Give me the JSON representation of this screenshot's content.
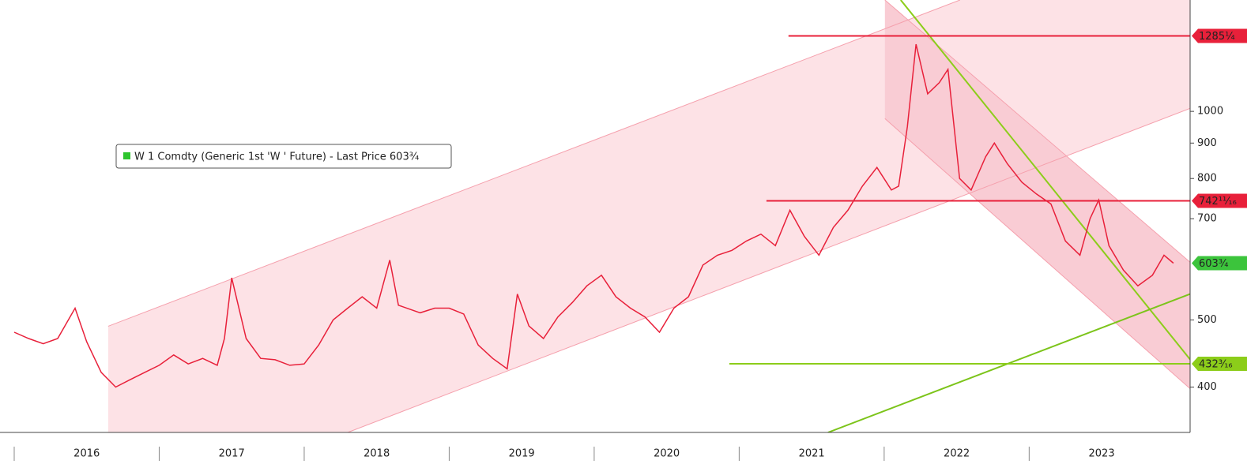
{
  "chart_data": {
    "type": "line",
    "log_scale": true,
    "xlim": [
      2015.902,
      2024.11
    ],
    "ylim": [
      344,
      1448
    ],
    "yticks": [
      400,
      500,
      700,
      800,
      900,
      1000
    ],
    "xticks": [
      {
        "value": 2016.5,
        "label": "2016"
      },
      {
        "value": 2017.5,
        "label": "2017"
      },
      {
        "value": 2018.5,
        "label": "2018"
      },
      {
        "value": 2019.5,
        "label": "2019"
      },
      {
        "value": 2020.5,
        "label": "2020"
      },
      {
        "value": 2021.5,
        "label": "2021"
      },
      {
        "value": 2022.5,
        "label": "2022"
      },
      {
        "value": 2023.5,
        "label": "2023"
      }
    ],
    "legend_color": "#2ec52e",
    "x": [
      2016.0,
      2016.1,
      2016.2,
      2016.3,
      2016.42,
      2016.5,
      2016.6,
      2016.7,
      2016.8,
      2016.9,
      2017.0,
      2017.1,
      2017.2,
      2017.3,
      2017.4,
      2017.45,
      2017.5,
      2017.6,
      2017.7,
      2017.8,
      2017.9,
      2018.0,
      2018.1,
      2018.2,
      2018.3,
      2018.4,
      2018.5,
      2018.59,
      2018.65,
      2018.8,
      2018.9,
      2019.0,
      2019.1,
      2019.2,
      2019.3,
      2019.4,
      2019.47,
      2019.55,
      2019.65,
      2019.75,
      2019.85,
      2019.95,
      2020.05,
      2020.15,
      2020.25,
      2020.35,
      2020.45,
      2020.55,
      2020.65,
      2020.75,
      2020.85,
      2020.95,
      2021.05,
      2021.15,
      2021.25,
      2021.35,
      2021.45,
      2021.55,
      2021.65,
      2021.75,
      2021.85,
      2021.95,
      2022.05,
      2022.1,
      2022.16,
      2022.22,
      2022.3,
      2022.38,
      2022.44,
      2022.52,
      2022.6,
      2022.7,
      2022.76,
      2022.85,
      2022.95,
      2023.05,
      2023.15,
      2023.25,
      2023.35,
      2023.42,
      2023.48,
      2023.55,
      2023.65,
      2023.75,
      2023.85,
      2023.93,
      2023.995
    ],
    "series": [
      {
        "name": "W 1 Comdty (Generic 1st 'W ' Future) - Last Price 603¾",
        "color": "#e8203a",
        "values": [
          480,
          470,
          462,
          470,
          520,
          465,
          420,
          400,
          410,
          420,
          430,
          445,
          432,
          440,
          430,
          470,
          575,
          470,
          440,
          438,
          430,
          432,
          460,
          500,
          520,
          540,
          520,
          610,
          525,
          512,
          520,
          520,
          510,
          460,
          440,
          425,
          545,
          490,
          470,
          505,
          530,
          560,
          580,
          540,
          520,
          505,
          480,
          520,
          540,
          600,
          620,
          630,
          650,
          665,
          640,
          720,
          660,
          620,
          680,
          720,
          780,
          830,
          770,
          780,
          950,
          1250,
          1060,
          1100,
          1150,
          800,
          770,
          860,
          900,
          840,
          790,
          760,
          735,
          650,
          620,
          700,
          745,
          640,
          590,
          560,
          580,
          620,
          603.75
        ]
      }
    ],
    "levels": [
      {
        "value": 1285.25,
        "label": "1285¼",
        "color": "#e8203a",
        "start": 2021.34
      },
      {
        "value": 742.6875,
        "label": "742¹¹⁄₁₆",
        "color": "#e8203a",
        "start": 2021.188
      },
      {
        "value": 603.75,
        "label": "603¾",
        "color": "#3cc43c"
      },
      {
        "value": 432.1875,
        "label": "432³⁄₁₆",
        "color": "#8ccd1a",
        "start": 2020.932
      }
    ],
    "channels": [
      {
        "color": "#fde2e6",
        "x": [
          2016.648,
          2022.523,
          2024.11,
          2024.11,
          2018.3,
          2016.648
        ],
        "values": [
          489.6,
          1448,
          1448,
          1010,
          344,
          344
        ]
      },
      {
        "color": "#f9ccd4",
        "x": [
          2022.005,
          2024.11,
          2024.11,
          2022.005
        ],
        "values": [
          1448,
          605.7,
          397.9,
          976.5
        ]
      }
    ],
    "trendlines": [
      {
        "color": "#f5a0ad",
        "x": [
          2016.648,
          2022.523
        ],
        "values": [
          489.6,
          1448
        ]
      },
      {
        "color": "#f5a0ad",
        "x": [
          2018.3,
          2024.11
        ],
        "values": [
          344,
          1010
        ]
      },
      {
        "color": "#f5a0ad",
        "x": [
          2022.005,
          2024.11
        ],
        "values": [
          1448,
          605.7
        ]
      },
      {
        "color": "#f5a0ad",
        "x": [
          2022.005,
          2024.11
        ],
        "values": [
          976.5,
          397.9
        ]
      },
      {
        "color": "#8ccd1a",
        "x": [
          2022.114,
          2024.11
        ],
        "values": [
          1448,
          438.5
        ]
      },
      {
        "color": "#7cc41a",
        "x": [
          2021.613,
          2024.11
        ],
        "values": [
          344,
          545
        ]
      }
    ]
  }
}
